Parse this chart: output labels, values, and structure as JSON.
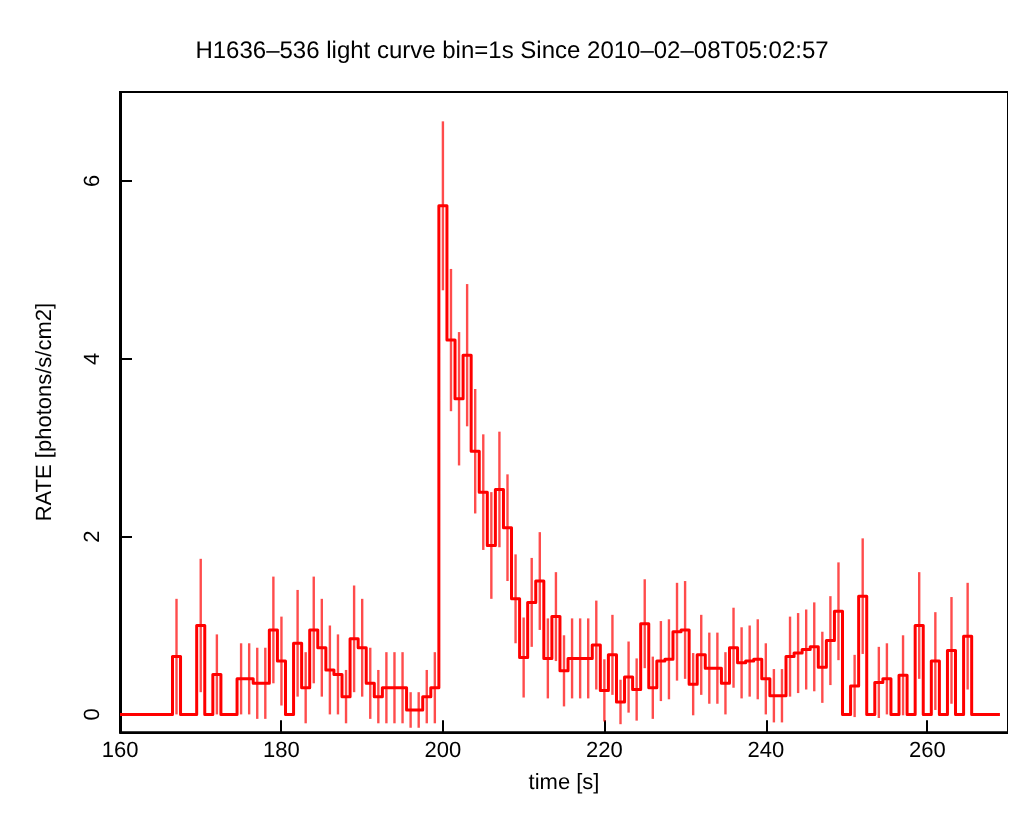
{
  "chart_data": {
    "type": "step",
    "title": "H1636–536 light curve bin=1s Since 2010–02–08T05:02:57",
    "xlabel": "time [s]",
    "ylabel": "RATE [photons/s/cm2]",
    "xlim": [
      160,
      270
    ],
    "xticks": [
      160,
      180,
      200,
      220,
      240,
      260
    ],
    "ylim": [
      -0.2,
      7
    ],
    "yticks": [
      0,
      2,
      4,
      6
    ],
    "grid": false,
    "marker": "none",
    "line_style": "solid",
    "x": [
      160,
      161,
      162,
      163,
      164,
      165,
      166,
      167,
      168,
      169,
      170,
      171,
      172,
      173,
      174,
      175,
      176,
      177,
      178,
      179,
      180,
      181,
      182,
      183,
      184,
      185,
      186,
      187,
      188,
      189,
      190,
      191,
      192,
      193,
      194,
      195,
      196,
      197,
      198,
      199,
      200,
      201,
      202,
      203,
      204,
      205,
      206,
      207,
      208,
      209,
      210,
      211,
      212,
      213,
      214,
      215,
      216,
      217,
      218,
      219,
      220,
      221,
      222,
      223,
      224,
      225,
      226,
      227,
      228,
      229,
      230,
      231,
      232,
      233,
      234,
      235,
      236,
      237,
      238,
      239,
      240,
      241,
      242,
      243,
      244,
      245,
      246,
      247,
      248,
      249,
      250,
      251,
      252,
      253,
      254,
      255,
      256,
      257,
      258,
      259,
      260,
      261,
      262,
      263,
      264,
      265,
      266,
      267,
      268,
      269
    ],
    "series": [
      {
        "color": "#ff0000",
        "values": [
          0,
          0,
          0,
          0,
          0,
          0,
          0,
          0.65,
          0,
          0,
          1.0,
          0,
          0.45,
          0,
          0,
          0.4,
          0.4,
          0.35,
          0.35,
          0.95,
          0.6,
          0,
          0.8,
          0.3,
          0.95,
          0.75,
          0.5,
          0.45,
          0.2,
          0.85,
          0.75,
          0.35,
          0.2,
          0.3,
          0.3,
          0.3,
          0.05,
          0.05,
          0.2,
          0.3,
          5.72,
          4.21,
          3.55,
          4.04,
          2.96,
          2.5,
          1.9,
          2.53,
          2.1,
          1.3,
          0.64,
          1.26,
          1.5,
          0.63,
          1.1,
          0.49,
          0.63,
          0.63,
          0.63,
          0.78,
          0.27,
          0.67,
          0.14,
          0.42,
          0.28,
          1.02,
          0.3,
          0.6,
          0.62,
          0.93,
          0.95,
          0.34,
          0.67,
          0.52,
          0.52,
          0.35,
          0.75,
          0.58,
          0.6,
          0.62,
          0.4,
          0.21,
          0.21,
          0.65,
          0.69,
          0.73,
          0.76,
          0.53,
          0.83,
          1.16,
          0,
          0.32,
          1.33,
          0,
          0.36,
          0.4,
          0,
          0.44,
          0,
          1.0,
          0,
          0.6,
          0,
          0.72,
          0,
          0.88,
          0,
          0,
          0,
          0
        ],
        "errors": [
          null,
          null,
          null,
          null,
          null,
          null,
          null,
          0.65,
          null,
          null,
          0.75,
          null,
          0.45,
          null,
          null,
          0.4,
          0.4,
          0.4,
          0.4,
          0.6,
          0.5,
          null,
          0.6,
          0.4,
          0.6,
          0.55,
          0.5,
          0.45,
          0.3,
          0.6,
          0.55,
          0.4,
          0.3,
          0.4,
          0.4,
          0.4,
          0.2,
          0.2,
          0.3,
          0.4,
          0.95,
          0.8,
          0.75,
          0.8,
          0.7,
          0.65,
          0.6,
          0.65,
          0.6,
          0.5,
          0.45,
          0.5,
          0.55,
          0.45,
          0.5,
          0.4,
          0.45,
          0.45,
          0.45,
          0.5,
          0.35,
          0.45,
          0.25,
          0.4,
          0.35,
          0.5,
          0.35,
          0.45,
          0.45,
          0.55,
          0.55,
          0.35,
          0.45,
          0.4,
          0.4,
          0.35,
          0.45,
          0.4,
          0.4,
          0.45,
          0.4,
          0.3,
          0.3,
          0.45,
          0.45,
          0.45,
          0.5,
          0.4,
          0.5,
          0.55,
          null,
          0.35,
          0.65,
          null,
          0.4,
          0.4,
          null,
          0.45,
          null,
          0.6,
          null,
          0.55,
          null,
          0.6,
          null,
          0.6,
          null,
          null,
          null,
          null
        ]
      }
    ]
  }
}
